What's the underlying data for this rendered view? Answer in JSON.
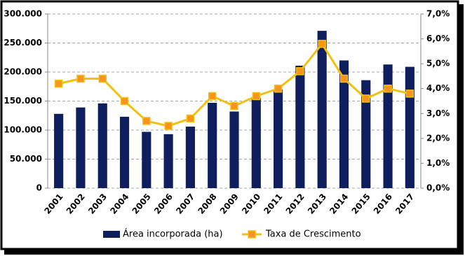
{
  "chart_data": {
    "type": "bar-line",
    "categories": [
      "2001",
      "2002",
      "2003",
      "2004",
      "2005",
      "2006",
      "2007",
      "2008",
      "2009",
      "2010",
      "2011",
      "2012",
      "2013",
      "2014",
      "2015",
      "2016",
      "2017"
    ],
    "series": [
      {
        "name": "Área incorporada (ha)",
        "type": "bar",
        "color": "#0f1f5e",
        "values": [
          128000,
          139000,
          146000,
          123000,
          97000,
          93000,
          106000,
          147000,
          132000,
          155000,
          170000,
          211000,
          271000,
          220000,
          186000,
          213000,
          209000
        ]
      },
      {
        "name": "Taxa de Crescimento",
        "type": "line",
        "axis": "y2",
        "color": "#f2c010",
        "marker_color": "#f7941d",
        "values": [
          4.2,
          4.4,
          4.4,
          3.5,
          2.7,
          2.5,
          2.8,
          3.7,
          3.3,
          3.7,
          4.0,
          4.7,
          5.8,
          4.4,
          3.6,
          4.0,
          3.8
        ]
      }
    ],
    "ylim": [
      0,
      300000
    ],
    "yticks": [
      0,
      {
        "value": 50000,
        "label": "50.000"
      },
      {
        "value": 100000,
        "label": "100.000"
      },
      {
        "value": 150000,
        "label": "150.000"
      },
      {
        "value": 200000,
        "label": "200.000"
      },
      {
        "value": 250000,
        "label": "250.000"
      },
      {
        "value": 300000,
        "label": "300.000"
      }
    ],
    "y2lim": [
      0,
      7
    ],
    "y2ticks": [
      {
        "value": 0,
        "label": "0,0%"
      },
      {
        "value": 1,
        "label": "1,0%"
      },
      {
        "value": 2,
        "label": "2,0%"
      },
      {
        "value": 3,
        "label": "3,0%"
      },
      {
        "value": 4,
        "label": "4,0%"
      },
      {
        "value": 5,
        "label": "5,0%"
      },
      {
        "value": 6,
        "label": "6,0%"
      },
      {
        "value": 7,
        "label": "7,0%"
      }
    ],
    "grid": true,
    "legend": "bottom"
  }
}
